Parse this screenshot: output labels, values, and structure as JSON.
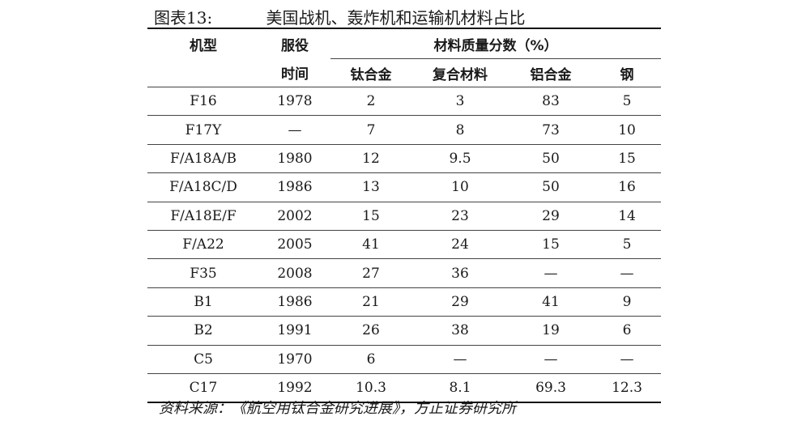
{
  "caption": {
    "label": "图表13:",
    "title": "美国战机、轰炸机和运输机材料占比"
  },
  "headers": {
    "model": "机型",
    "service_line1": "服役",
    "service_line2": "时间",
    "group": "材料质量分数（%）",
    "titanium": "钛合金",
    "composite": "复合材料",
    "aluminum": "铝合金",
    "steel": "钢"
  },
  "rows": [
    [
      "F16",
      "1978",
      "2",
      "3",
      "83",
      "5"
    ],
    [
      "F17Y",
      "—",
      "7",
      "8",
      "73",
      "10"
    ],
    [
      "F/A18A/B",
      "1980",
      "12",
      "9.5",
      "50",
      "15"
    ],
    [
      "F/A18C/D",
      "1986",
      "13",
      "10",
      "50",
      "16"
    ],
    [
      "F/A18E/F",
      "2002",
      "15",
      "23",
      "29",
      "14"
    ],
    [
      "F/A22",
      "2005",
      "41",
      "24",
      "15",
      "5"
    ],
    [
      "F35",
      "2008",
      "27",
      "36",
      "—",
      "—"
    ],
    [
      "B1",
      "1986",
      "21",
      "29",
      "41",
      "9"
    ],
    [
      "B2",
      "1991",
      "26",
      "38",
      "19",
      "6"
    ],
    [
      "C5",
      "1970",
      "6",
      "—",
      "—",
      "—"
    ],
    [
      "C17",
      "1992",
      "10.3",
      "8.1",
      "69.3",
      "12.3"
    ]
  ],
  "source": "资料来源：《航空用钛合金研究进展》，方正证券研究所"
}
